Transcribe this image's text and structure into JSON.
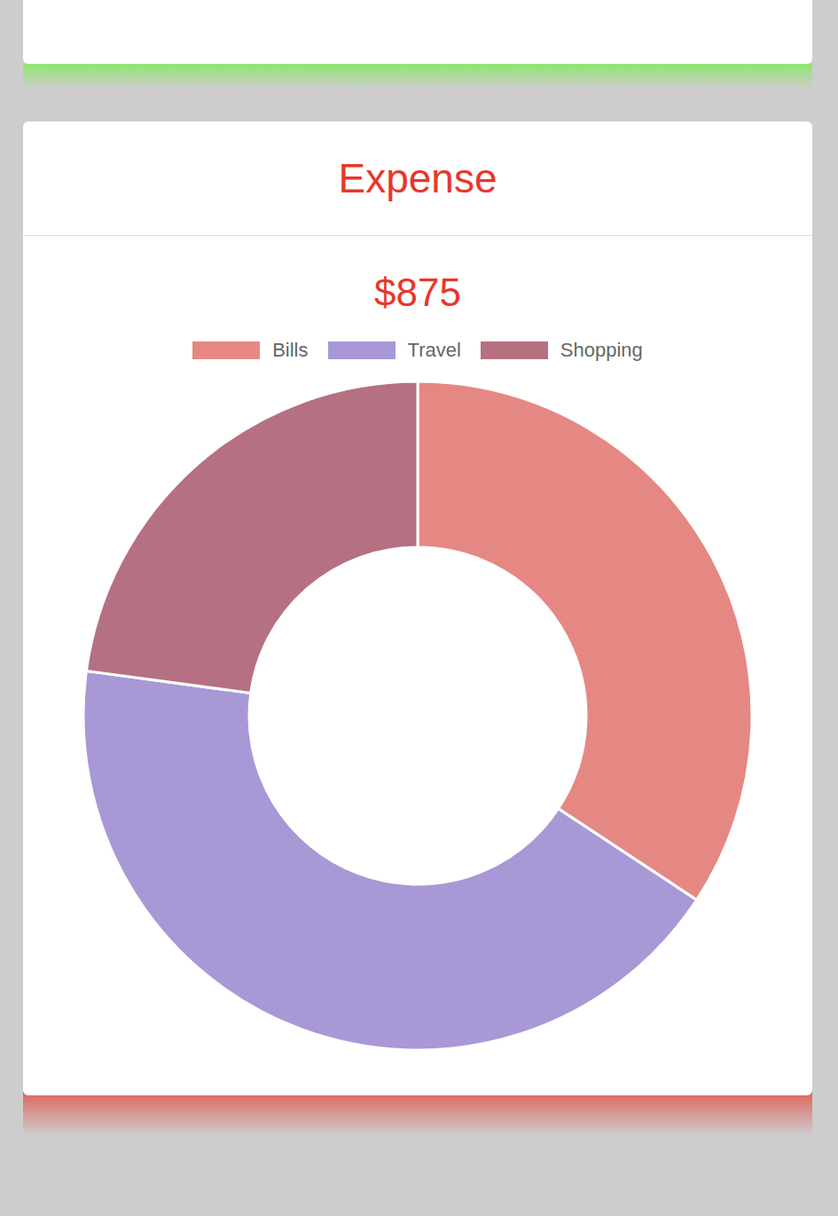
{
  "chart_data": {
    "type": "donut",
    "title": "Expense",
    "subtitle": "$875",
    "categories": [
      "Bills",
      "Travel",
      "Shopping"
    ],
    "values": [
      300,
      375,
      200
    ],
    "colors": [
      "#e58884",
      "#a898d6",
      "#b57081"
    ],
    "legend": "top"
  }
}
